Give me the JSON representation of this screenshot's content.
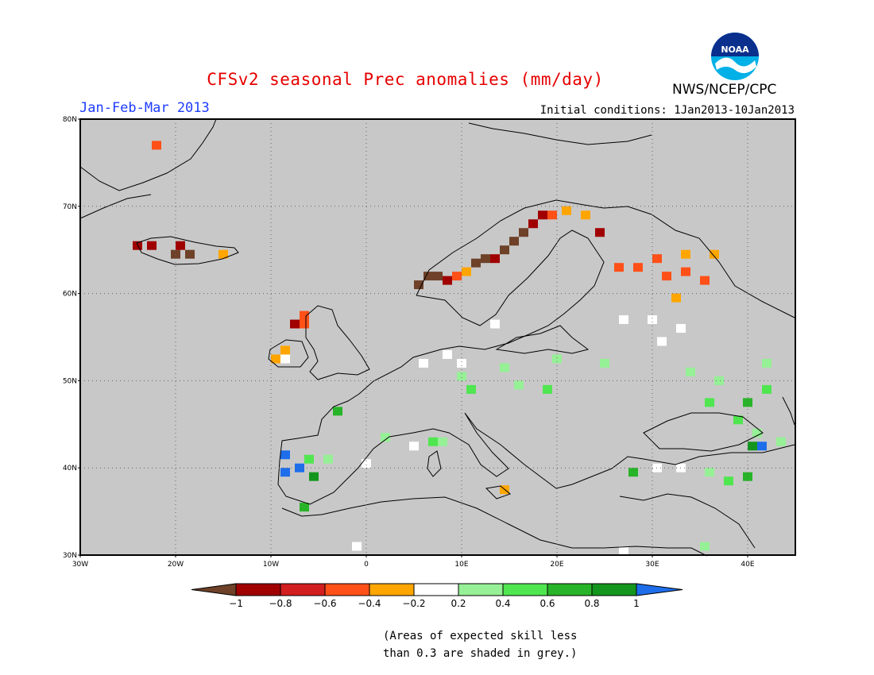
{
  "header": {
    "title": "CFSv2 seasonal Prec anomalies (mm/day)",
    "season": "Jan-Feb-Mar 2013",
    "initial_conditions": "Initial conditions: 1Jan2013-10Jan2013",
    "agency": "NWS/NCEP/CPC",
    "logo_text": "NOAA"
  },
  "map": {
    "extent": {
      "lon": [
        -30,
        45
      ],
      "lat": [
        30,
        80
      ]
    },
    "lat_labels": [
      "80N",
      "70N",
      "60N",
      "50N",
      "40N",
      "30N"
    ],
    "lon_labels": [
      "30W",
      "20W",
      "10W",
      "0",
      "10E",
      "20E",
      "30E",
      "40E"
    ],
    "background_color": "#c8c8c8",
    "grid": "dotted",
    "anomaly_cells": [
      {
        "lon": -22,
        "lat": 77,
        "v": -0.6
      },
      {
        "lon": -24,
        "lat": 65.5,
        "v": -0.9
      },
      {
        "lon": -22.5,
        "lat": 65.5,
        "v": -0.9
      },
      {
        "lon": -20,
        "lat": 64.5,
        "v": -1.1
      },
      {
        "lon": -18.5,
        "lat": 64.5,
        "v": -1.1
      },
      {
        "lon": -19.5,
        "lat": 65.5,
        "v": -0.9
      },
      {
        "lon": -15,
        "lat": 64.5,
        "v": -0.3
      },
      {
        "lon": -6.5,
        "lat": 57.5,
        "v": -0.6
      },
      {
        "lon": -7.5,
        "lat": 56.5,
        "v": -0.9
      },
      {
        "lon": -6.5,
        "lat": 56.5,
        "v": -0.6
      },
      {
        "lon": -8.5,
        "lat": 53.5,
        "v": -0.3
      },
      {
        "lon": -9.5,
        "lat": 52.5,
        "v": -0.3
      },
      {
        "lon": -8.5,
        "lat": 52.5,
        "v": 0.0
      },
      {
        "lon": 5.5,
        "lat": 61,
        "v": -1.1
      },
      {
        "lon": 6.5,
        "lat": 62,
        "v": -1.1
      },
      {
        "lon": 7.5,
        "lat": 62,
        "v": -1.1
      },
      {
        "lon": 8.5,
        "lat": 61.5,
        "v": -0.9
      },
      {
        "lon": 9.5,
        "lat": 62,
        "v": -0.6
      },
      {
        "lon": 10.5,
        "lat": 62.5,
        "v": -0.3
      },
      {
        "lon": 11.5,
        "lat": 63.5,
        "v": -1.1
      },
      {
        "lon": 12.5,
        "lat": 64,
        "v": -1.1
      },
      {
        "lon": 13.5,
        "lat": 64,
        "v": -0.9
      },
      {
        "lon": 14.5,
        "lat": 65,
        "v": -1.1
      },
      {
        "lon": 15.5,
        "lat": 66,
        "v": -1.1
      },
      {
        "lon": 16.5,
        "lat": 67,
        "v": -1.1
      },
      {
        "lon": 17.5,
        "lat": 68,
        "v": -0.9
      },
      {
        "lon": 18.5,
        "lat": 69,
        "v": -0.9
      },
      {
        "lon": 19.5,
        "lat": 69,
        "v": -0.6
      },
      {
        "lon": 21,
        "lat": 69.5,
        "v": -0.3
      },
      {
        "lon": 23,
        "lat": 69,
        "v": -0.3
      },
      {
        "lon": 24.5,
        "lat": 67,
        "v": -0.9
      },
      {
        "lon": 26.5,
        "lat": 63,
        "v": -0.6
      },
      {
        "lon": 28.5,
        "lat": 63,
        "v": -0.6
      },
      {
        "lon": 30.5,
        "lat": 64,
        "v": -0.6
      },
      {
        "lon": 31.5,
        "lat": 62,
        "v": -0.6
      },
      {
        "lon": 33.5,
        "lat": 62.5,
        "v": -0.6
      },
      {
        "lon": 35.5,
        "lat": 61.5,
        "v": -0.6
      },
      {
        "lon": 33.5,
        "lat": 64.5,
        "v": -0.3
      },
      {
        "lon": 36.5,
        "lat": 64.5,
        "v": -0.3
      },
      {
        "lon": 32.5,
        "lat": 59.5,
        "v": -0.3
      },
      {
        "lon": 27,
        "lat": 57,
        "v": 0.0
      },
      {
        "lon": 30,
        "lat": 57,
        "v": 0.0
      },
      {
        "lon": 33,
        "lat": 56,
        "v": 0.0
      },
      {
        "lon": 31,
        "lat": 54.5,
        "v": 0.0
      },
      {
        "lon": 13.5,
        "lat": 56.5,
        "v": 0.0
      },
      {
        "lon": 8.5,
        "lat": 53,
        "v": 0.0
      },
      {
        "lon": 6,
        "lat": 52,
        "v": 0.0
      },
      {
        "lon": 10,
        "lat": 52,
        "v": 0.0
      },
      {
        "lon": 14.5,
        "lat": 51.5,
        "v": 0.3
      },
      {
        "lon": 20,
        "lat": 52.5,
        "v": 0.3
      },
      {
        "lon": 25,
        "lat": 52,
        "v": 0.3
      },
      {
        "lon": 10,
        "lat": 50.5,
        "v": 0.3
      },
      {
        "lon": 16,
        "lat": 49.5,
        "v": 0.3
      },
      {
        "lon": 11,
        "lat": 49,
        "v": 0.5
      },
      {
        "lon": 19,
        "lat": 49,
        "v": 0.5
      },
      {
        "lon": 34,
        "lat": 51,
        "v": 0.3
      },
      {
        "lon": 37,
        "lat": 50,
        "v": 0.3
      },
      {
        "lon": 42,
        "lat": 52,
        "v": 0.3
      },
      {
        "lon": 42,
        "lat": 49,
        "v": 0.5
      },
      {
        "lon": 40,
        "lat": 47.5,
        "v": 0.7
      },
      {
        "lon": 36,
        "lat": 47.5,
        "v": 0.5
      },
      {
        "lon": 39,
        "lat": 45.5,
        "v": 0.5
      },
      {
        "lon": 41,
        "lat": 44,
        "v": 0.3
      },
      {
        "lon": 40.5,
        "lat": 42.5,
        "v": 0.9
      },
      {
        "lon": 41.5,
        "lat": 42.5,
        "v": 1.1
      },
      {
        "lon": 43.5,
        "lat": 43,
        "v": 0.3
      },
      {
        "lon": -3,
        "lat": 46.5,
        "v": 0.7
      },
      {
        "lon": 2,
        "lat": 43.5,
        "v": 0.3
      },
      {
        "lon": 5,
        "lat": 42.5,
        "v": 0.0
      },
      {
        "lon": 7,
        "lat": 43,
        "v": 0.5
      },
      {
        "lon": 8,
        "lat": 43,
        "v": 0.3
      },
      {
        "lon": -8.5,
        "lat": 41.5,
        "v": 1.1
      },
      {
        "lon": -8.5,
        "lat": 39.5,
        "v": 1.1
      },
      {
        "lon": -7,
        "lat": 40,
        "v": 1.1
      },
      {
        "lon": -5.5,
        "lat": 39,
        "v": 0.9
      },
      {
        "lon": -6,
        "lat": 41,
        "v": 0.5
      },
      {
        "lon": -4,
        "lat": 41,
        "v": 0.3
      },
      {
        "lon": -6.5,
        "lat": 35.5,
        "v": 0.7
      },
      {
        "lon": 14.5,
        "lat": 37.5,
        "v": -0.3
      },
      {
        "lon": 0,
        "lat": 40.5,
        "v": 0.0
      },
      {
        "lon": -1,
        "lat": 31,
        "v": 0.0
      },
      {
        "lon": 28,
        "lat": 39.5,
        "v": 0.7
      },
      {
        "lon": 30.5,
        "lat": 40,
        "v": 0.0
      },
      {
        "lon": 33,
        "lat": 40,
        "v": 0.0
      },
      {
        "lon": 36,
        "lat": 39.5,
        "v": 0.3
      },
      {
        "lon": 38,
        "lat": 38.5,
        "v": 0.5
      },
      {
        "lon": 40,
        "lat": 39,
        "v": 0.7
      },
      {
        "lon": 27,
        "lat": 30.5,
        "v": 0.0
      },
      {
        "lon": 35.5,
        "lat": 31,
        "v": 0.3
      }
    ]
  },
  "colorbar": {
    "labels": [
      "-1",
      "-0.8",
      "-0.6",
      "-0.4",
      "-0.2",
      "0.2",
      "0.4",
      "0.6",
      "0.8",
      "1"
    ],
    "colors": [
      "#6e4128",
      "#a00000",
      "#d21e1e",
      "#ff5018",
      "#ffa500",
      "#ffffff",
      "#96f096",
      "#50e650",
      "#28b428",
      "#14961e",
      "#1e6eeb"
    ]
  },
  "note": {
    "line1": "(Areas of expected skill less",
    "line2": "than 0.3 are shaded in grey.)"
  }
}
